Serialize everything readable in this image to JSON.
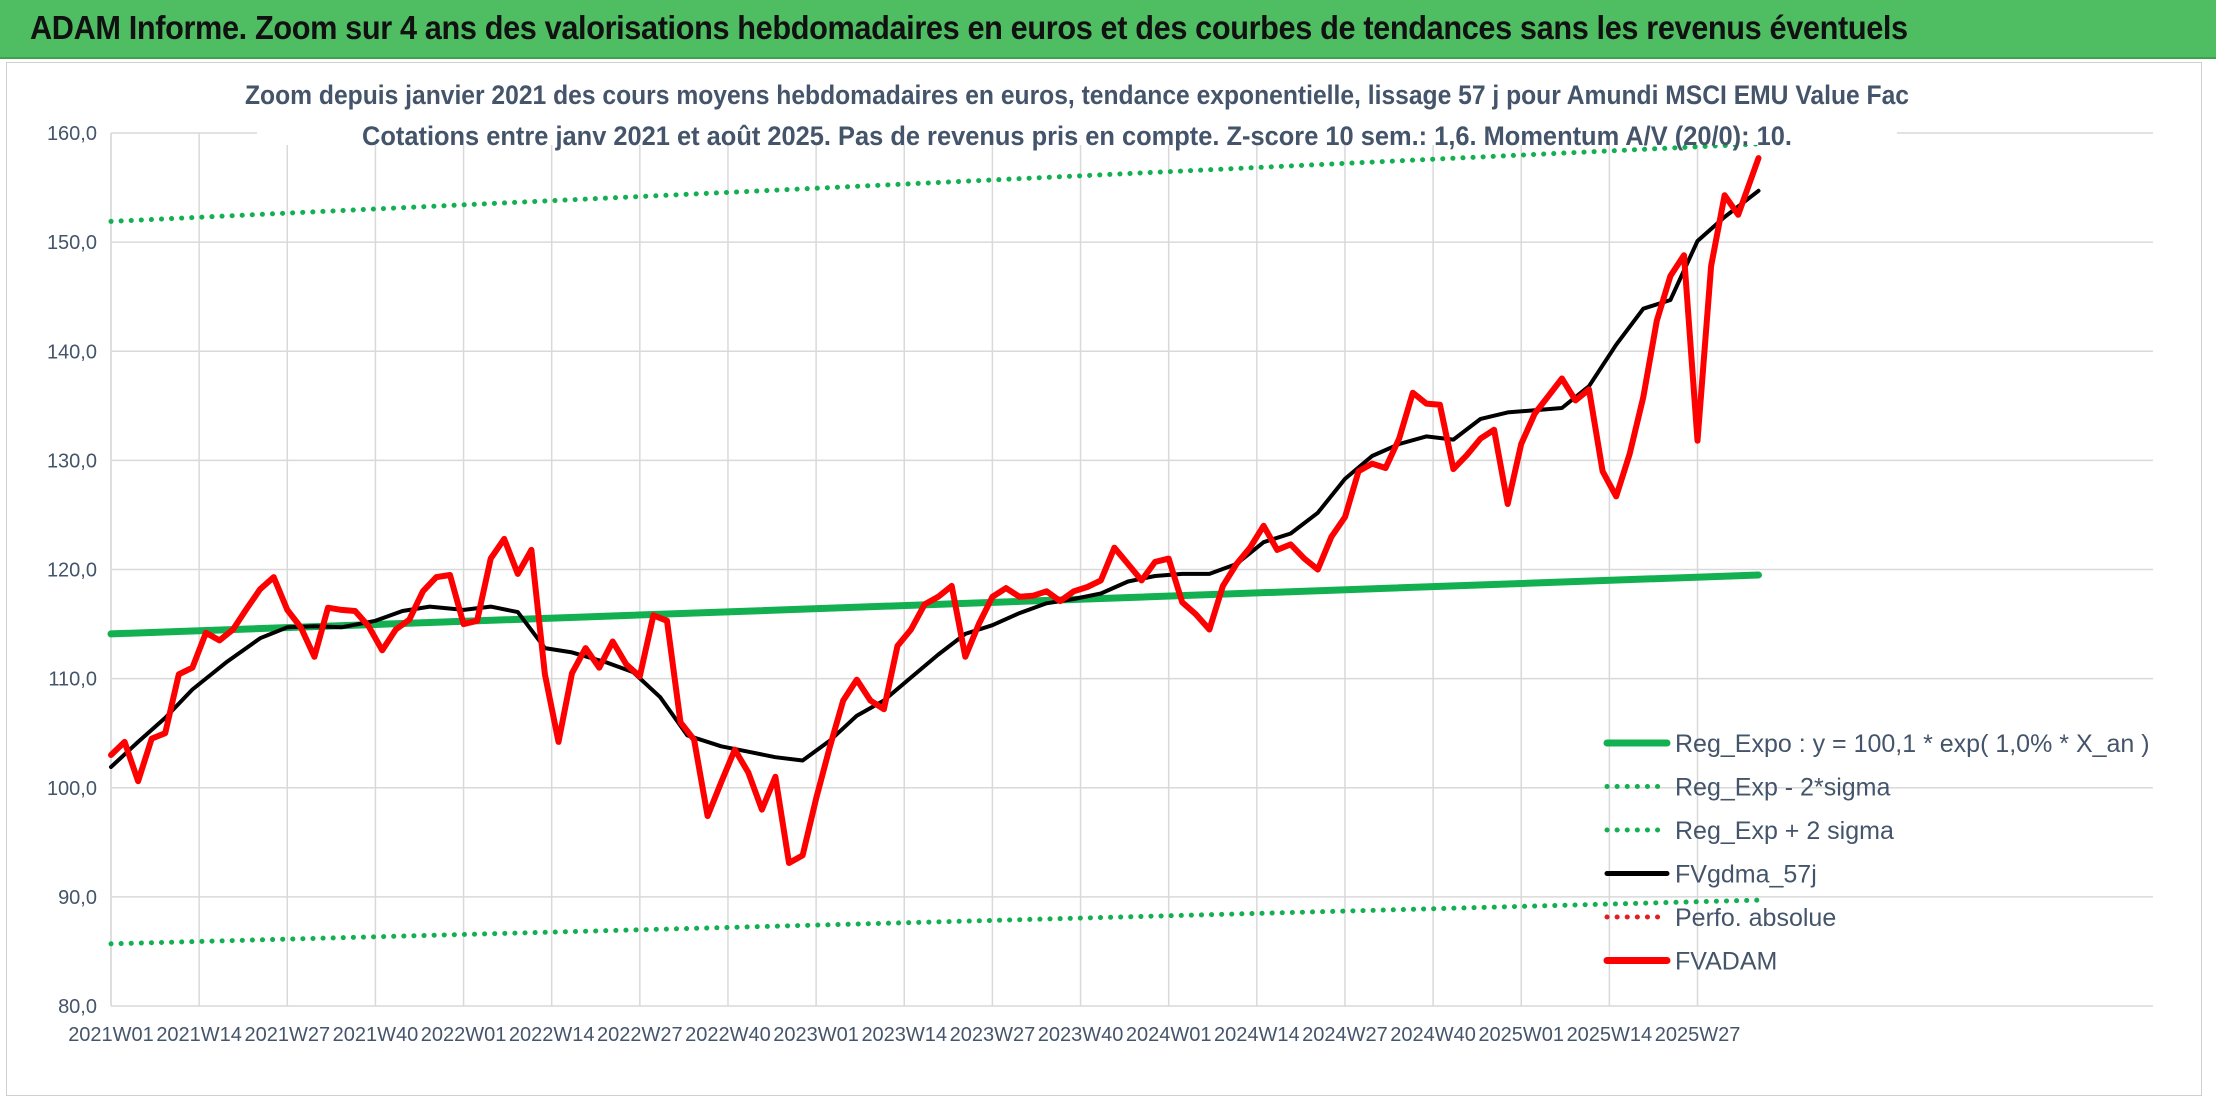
{
  "header": {
    "title": "ADAM Informe. Zoom sur 4 ans des valorisations hebdomadaires en euros et des courbes de tendances sans les revenus éventuels"
  },
  "colors": {
    "header_bg": "#4fbd62",
    "reg_green": "#12b050",
    "dotted_green": "#12b050",
    "fvgdma": "#000000",
    "fvadam": "#ff0000",
    "perfo": "#e02020",
    "grid": "#d9d9d9",
    "text": "#44546a"
  },
  "chart_data": {
    "type": "line",
    "title_lines": [
      "Zoom depuis janvier 2021 des cours moyens hebdomadaires en euros, tendance exponentielle, lissage 57 j pour Amundi MSCI EMU Value Fac",
      "Cotations entre janv 2021 et août 2025. Pas de revenus pris en compte. Z-score 10 sem.: 1,6. Momentum A/V (20/0): 10."
    ],
    "xlabel": "",
    "ylabel": "",
    "ylim": [
      80,
      160
    ],
    "yticks": [
      "80,0",
      "90,0",
      "100,0",
      "110,0",
      "120,0",
      "130,0",
      "140,0",
      "150,0",
      "160,0"
    ],
    "x_tick_labels": [
      "2021W01",
      "2021W14",
      "2021W27",
      "2021W40",
      "2022W01",
      "2022W14",
      "2022W27",
      "2022W40",
      "2023W01",
      "2023W14",
      "2023W27",
      "2023W40",
      "2024W01",
      "2024W14",
      "2024W27",
      "2024W40",
      "2025W01",
      "2025W14",
      "2025W27"
    ],
    "x_range_weeks": [
      0,
      243
    ],
    "grid": true,
    "legend_position": "bottom-right",
    "series": [
      {
        "name": "Reg_Expo : y = 100,1 * exp( 1,0% *  X_an )",
        "style": "solid-thick",
        "color": "#12b050",
        "x": [
          0,
          243
        ],
        "values": [
          114.1,
          119.5
        ]
      },
      {
        "name": "Reg_Exp - 2*sigma",
        "style": "dotted",
        "color": "#12b050",
        "x": [
          0,
          243
        ],
        "values": [
          85.7,
          89.7
        ]
      },
      {
        "name": "Reg_Exp + 2 sigma",
        "style": "dotted",
        "color": "#12b050",
        "x": [
          0,
          243
        ],
        "values": [
          151.9,
          159.0
        ]
      },
      {
        "name": "FVgdma_57j",
        "style": "solid",
        "color": "#000000",
        "x": [
          0,
          4,
          8,
          12,
          17,
          22,
          26,
          30,
          34,
          39,
          43,
          47,
          52,
          56,
          60,
          64,
          68,
          73,
          77,
          81,
          85,
          90,
          94,
          98,
          102,
          106,
          110,
          114,
          118,
          122,
          126,
          130,
          134,
          138,
          142,
          146,
          150,
          154,
          158,
          162,
          166,
          170,
          174,
          178,
          182,
          186,
          190,
          194,
          198,
          202,
          206,
          210,
          214,
          218,
          222,
          226,
          230,
          234,
          238,
          243
        ],
        "values": [
          101.9,
          104.2,
          106.4,
          109.0,
          111.5,
          113.7,
          114.7,
          114.8,
          114.7,
          115.3,
          116.2,
          116.6,
          116.3,
          116.6,
          116.1,
          112.8,
          112.4,
          111.5,
          110.6,
          108.3,
          104.8,
          103.8,
          103.3,
          102.8,
          102.5,
          104.3,
          106.6,
          108.0,
          110.1,
          112.2,
          114.1,
          114.9,
          116.0,
          116.9,
          117.3,
          117.8,
          118.9,
          119.4,
          119.6,
          119.6,
          120.5,
          122.5,
          123.3,
          125.2,
          128.3,
          130.4,
          131.5,
          132.2,
          131.9,
          133.8,
          134.4,
          134.6,
          134.8,
          136.8,
          140.6,
          143.9,
          144.7,
          150.1,
          152.3,
          154.7
        ]
      },
      {
        "name": "Perfo. absolue",
        "style": "dotted",
        "color": "#e02020",
        "x": [],
        "values": []
      },
      {
        "name": "FVADAM",
        "style": "solid-thick",
        "color": "#ff0000",
        "x": [
          0,
          2,
          4,
          6,
          8,
          10,
          12,
          14,
          16,
          18,
          20,
          22,
          24,
          26,
          28,
          30,
          32,
          34,
          36,
          38,
          40,
          42,
          44,
          46,
          48,
          50,
          52,
          54,
          56,
          58,
          60,
          62,
          64,
          66,
          68,
          70,
          72,
          74,
          76,
          78,
          80,
          82,
          84,
          86,
          88,
          90,
          92,
          94,
          96,
          98,
          100,
          102,
          104,
          106,
          108,
          110,
          112,
          114,
          116,
          118,
          120,
          122,
          124,
          126,
          128,
          130,
          132,
          134,
          136,
          138,
          140,
          142,
          144,
          146,
          148,
          150,
          152,
          154,
          156,
          158,
          160,
          162,
          164,
          166,
          168,
          170,
          172,
          174,
          176,
          178,
          180,
          182,
          184,
          186,
          188,
          190,
          192,
          194,
          196,
          198,
          200,
          202,
          204,
          206,
          208,
          210,
          212,
          214,
          216,
          218,
          220,
          222,
          224,
          226,
          228,
          230,
          232,
          234,
          236,
          238,
          240,
          243
        ],
        "values": [
          103.0,
          104.2,
          100.6,
          104.5,
          105.0,
          110.4,
          111.0,
          114.2,
          113.5,
          114.5,
          116.4,
          118.2,
          119.3,
          116.3,
          114.7,
          112.0,
          116.5,
          116.3,
          116.2,
          114.8,
          112.6,
          114.5,
          115.4,
          118.0,
          119.3,
          119.5,
          115.0,
          115.3,
          121.0,
          122.8,
          119.6,
          121.8,
          110.4,
          104.2,
          110.5,
          112.8,
          111.0,
          113.4,
          111.3,
          110.2,
          115.8,
          115.3,
          106.0,
          104.4,
          97.4,
          100.5,
          103.5,
          101.4,
          98.0,
          101.0,
          93.1,
          93.8,
          99.0,
          103.7,
          108.0,
          109.9,
          108.0,
          107.2,
          113.0,
          114.5,
          116.8,
          117.5,
          118.5,
          112.0,
          115.0,
          117.5,
          118.3,
          117.5,
          117.6,
          118.0,
          117.1,
          118.0,
          118.4,
          119.0,
          122.0,
          120.5,
          119.0,
          120.7,
          121.0,
          117.0,
          115.9,
          114.5,
          118.5,
          120.5,
          122.0,
          124.0,
          121.8,
          122.3,
          121.0,
          120.0,
          123.0,
          124.8,
          129.0,
          129.7,
          129.3,
          132.0,
          136.2,
          135.2,
          135.1,
          129.2,
          130.5,
          132.0,
          132.8,
          126.0,
          131.5,
          134.3,
          135.9,
          137.5,
          135.5,
          136.5,
          129.0,
          126.7,
          130.6,
          135.8,
          142.8,
          146.9,
          148.8,
          131.8,
          147.8,
          154.3,
          152.5,
          157.7
        ]
      }
    ]
  }
}
